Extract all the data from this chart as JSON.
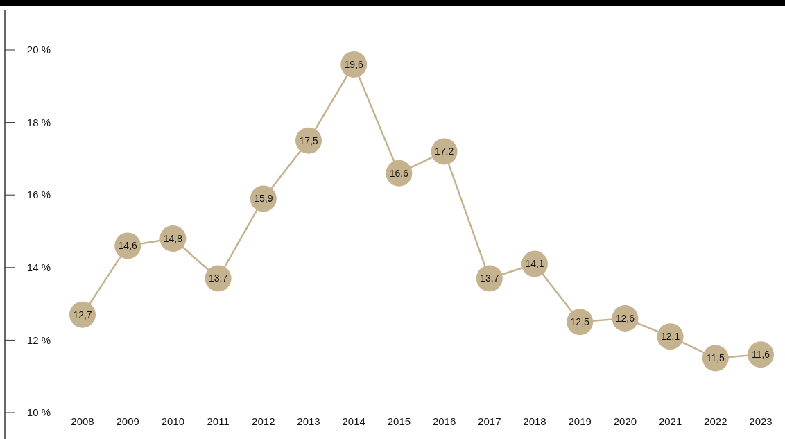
{
  "chart_data": {
    "type": "line",
    "categories": [
      "2008",
      "2009",
      "2010",
      "2011",
      "2012",
      "2013",
      "2014",
      "2015",
      "2016",
      "2017",
      "2018",
      "2019",
      "2020",
      "2021",
      "2022",
      "2023"
    ],
    "series": [
      {
        "color": "#c5b28e",
        "values": [
          12.7,
          14.6,
          14.8,
          13.7,
          15.9,
          17.5,
          19.6,
          16.6,
          17.2,
          13.7,
          14.1,
          12.5,
          12.6,
          12.1,
          11.5,
          11.6
        ],
        "value_labels": [
          "12,7",
          "14,6",
          "14,8",
          "13,7",
          "15,9",
          "17,5",
          "19,6",
          "16,6",
          "17,2",
          "13,7",
          "14,1",
          "12,5",
          "12,6",
          "12,1",
          "11,5",
          "11,6"
        ]
      }
    ],
    "ylim": [
      10,
      20
    ],
    "yticks": [
      {
        "value": 10,
        "label": "10 %"
      },
      {
        "value": 12,
        "label": "12 %"
      },
      {
        "value": 14,
        "label": "14 %"
      },
      {
        "value": 16,
        "label": "16 %"
      },
      {
        "value": 18,
        "label": "18 %"
      },
      {
        "value": 20,
        "label": "20 %"
      }
    ],
    "marker": "circle",
    "line_style": "solid",
    "grid": false
  }
}
